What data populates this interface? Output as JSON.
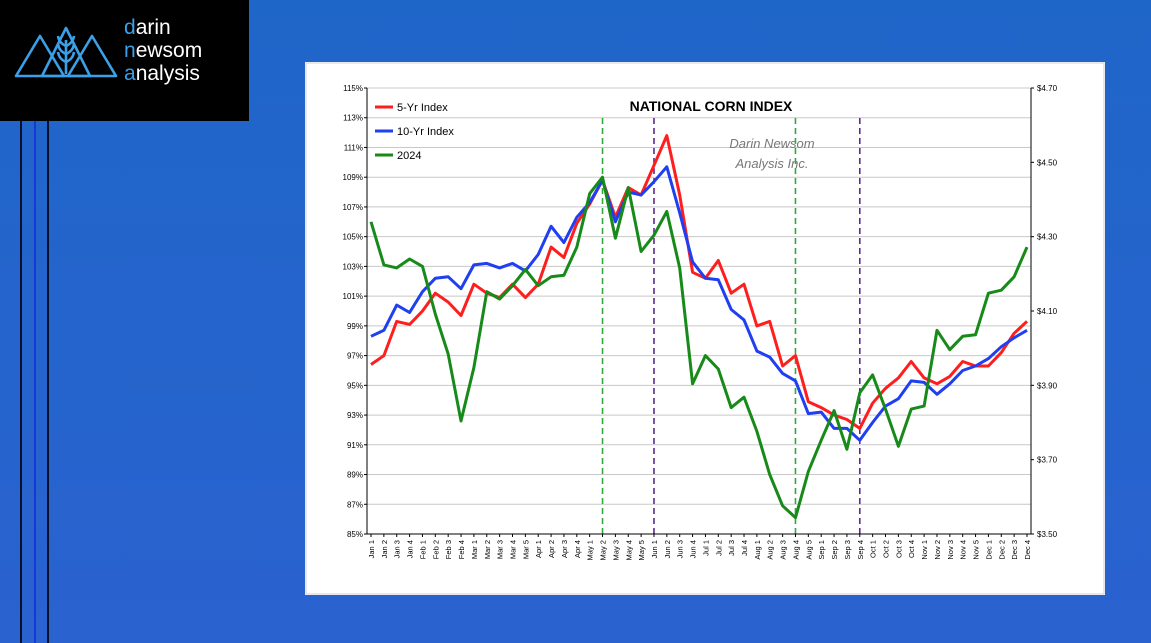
{
  "logo": {
    "line1_first": "d",
    "line1_rest": "arin",
    "line2_first": "n",
    "line2_rest": "ewsom",
    "line3_first": "a",
    "line3_rest": "nalysis",
    "mark_icon": "mountain-wheat-icon"
  },
  "colors": {
    "background": "#2463cb",
    "five_yr": "#ff1e1e",
    "ten_yr": "#1f3ff0",
    "y2024": "#178a1a",
    "green_marker": "#2eaa3a",
    "purple_marker": "#5b2a8e",
    "accent": "#3aa0e8"
  },
  "chart_data": {
    "type": "line",
    "title": "NATIONAL CORN INDEX",
    "watermark": [
      "Darin Newsom",
      "Analysis Inc."
    ],
    "categories": [
      "Jan 1",
      "Jan 2",
      "Jan 3",
      "Jan 4",
      "Feb 1",
      "Feb 2",
      "Feb 3",
      "Feb 4",
      "Mar 1",
      "Mar 2",
      "Mar 3",
      "Mar 4",
      "Mar 5",
      "Apr 1",
      "Apr 2",
      "Apr 3",
      "Apr 4",
      "May 1",
      "May 2",
      "May 3",
      "May 4",
      "May 5",
      "Jun 1",
      "Jun 2",
      "Jun 3",
      "Jun 4",
      "Jul 1",
      "Jul 2",
      "Jul 3",
      "Jul 4",
      "Aug 1",
      "Aug 2",
      "Aug 3",
      "Aug 4",
      "Aug 5",
      "Sep 1",
      "Sep 2",
      "Sep 3",
      "Sep 4",
      "Oct 1",
      "Oct 2",
      "Oct 3",
      "Oct 4",
      "Nov 1",
      "Nov 2",
      "Nov 3",
      "Nov 4",
      "Nov 5",
      "Dec 1",
      "Dec 2",
      "Dec 3",
      "Dec 4"
    ],
    "left_axis": {
      "min": 85,
      "max": 115,
      "step": 2,
      "unit": "%"
    },
    "right_axis": {
      "min": 3.5,
      "max": 4.7,
      "ticks": [
        "$3.50",
        "$3.70",
        "$3.90",
        "$4.10",
        "$4.30",
        "$4.50",
        "$4.70"
      ]
    },
    "grid": true,
    "legend_position": "top-left",
    "series": [
      {
        "name": "5-Yr Index",
        "axis": "left",
        "color": "#ff1e1e",
        "values": [
          96.4,
          97.0,
          99.3,
          99.1,
          100.0,
          101.2,
          100.6,
          99.7,
          101.8,
          101.2,
          100.9,
          101.8,
          100.9,
          101.8,
          104.3,
          103.6,
          105.9,
          107.2,
          108.8,
          106.3,
          108.3,
          107.8,
          109.8,
          111.8,
          107.8,
          102.6,
          102.2,
          103.4,
          101.2,
          101.8,
          99.0,
          99.3,
          96.3,
          97.0,
          93.9,
          93.5,
          93.0,
          92.7,
          92.1,
          93.8,
          94.8,
          95.5,
          96.6,
          95.5,
          95.1,
          95.6,
          96.6,
          96.3,
          96.3,
          97.2,
          98.5,
          99.3
        ]
      },
      {
        "name": "10-Yr Index",
        "axis": "left",
        "color": "#1f3ff0",
        "values": [
          98.3,
          98.7,
          100.4,
          99.9,
          101.3,
          102.2,
          102.3,
          101.5,
          103.1,
          103.2,
          102.9,
          103.2,
          102.7,
          103.8,
          105.7,
          104.6,
          106.3,
          107.3,
          108.8,
          106.0,
          108.0,
          107.8,
          108.7,
          109.7,
          106.6,
          103.3,
          102.2,
          102.1,
          100.1,
          99.4,
          97.3,
          96.9,
          95.8,
          95.3,
          93.1,
          93.2,
          92.1,
          92.1,
          91.3,
          92.5,
          93.6,
          94.1,
          95.3,
          95.2,
          94.4,
          95.1,
          96.0,
          96.3,
          96.8,
          97.6,
          98.2,
          98.7
        ]
      },
      {
        "name": "2024",
        "axis": "left",
        "color": "#178a1a",
        "values": [
          106.0,
          103.1,
          102.9,
          103.5,
          103.0,
          99.8,
          97.1,
          92.6,
          96.2,
          101.3,
          100.8,
          101.7,
          102.8,
          101.7,
          102.3,
          102.4,
          104.3,
          107.9,
          109.0,
          104.9,
          108.3,
          104.0,
          105.1,
          106.7,
          102.9,
          95.1,
          97.0,
          96.1,
          93.5,
          94.2,
          91.9,
          89.0,
          86.9,
          86.1,
          89.2,
          91.3,
          93.3,
          90.7,
          94.5,
          95.7,
          93.4,
          90.9,
          93.4,
          93.6,
          98.7,
          97.4,
          98.3,
          98.4,
          101.2,
          101.4,
          102.3,
          104.3
        ]
      }
    ],
    "markers": [
      {
        "category": "May 2",
        "style": "dashed",
        "color": "#2eaa3a"
      },
      {
        "category": "Jun 1",
        "style": "dashed",
        "color": "#5b2a8e"
      },
      {
        "category": "Aug 4",
        "style": "dashed",
        "color": "#2eaa3a"
      },
      {
        "category": "Sep 4",
        "style": "dashed",
        "color": "#5b2a8e"
      }
    ]
  }
}
